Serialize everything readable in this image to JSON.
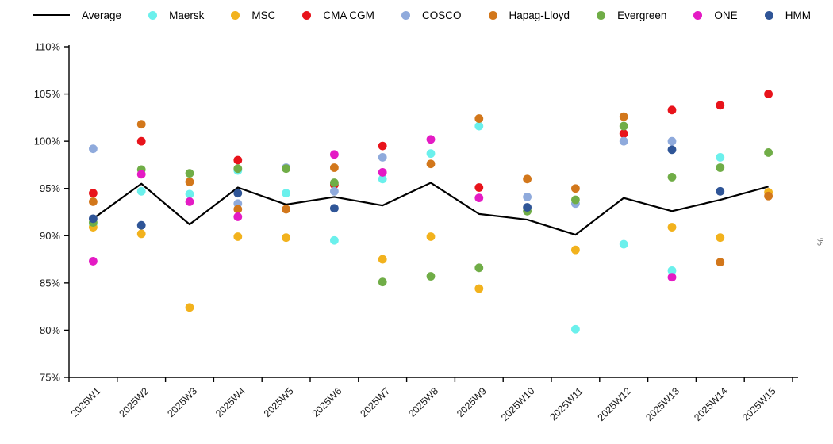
{
  "legend": {
    "note": "series legend across top, left-to-right order matches chart_data.series"
  },
  "y_axis_right_label": "%",
  "chart_data": {
    "type": "scatter",
    "title": "",
    "xlabel": "",
    "ylabel": "%",
    "grid": false,
    "legend_position": "top",
    "ylim": [
      75,
      110
    ],
    "ytick_step": 5,
    "ytick_format": "percent",
    "categories": [
      "2025W1",
      "2025W2",
      "2025W3",
      "2025W4",
      "2025W5",
      "2025W6",
      "2025W7",
      "2025W8",
      "2025W9",
      "2025W10",
      "2025W11",
      "2025W12",
      "2025W13",
      "2025W14",
      "2025W15"
    ],
    "series": [
      {
        "name": "Average",
        "marker": "line",
        "color": "#000000",
        "values": [
          91.8,
          95.5,
          91.2,
          95.1,
          93.3,
          94.1,
          93.2,
          95.6,
          92.3,
          91.7,
          90.1,
          94.0,
          92.6,
          93.8,
          95.2
        ]
      },
      {
        "name": "Maersk",
        "marker": "dot",
        "color": "#6BF0EC",
        "values": [
          91.2,
          94.7,
          94.4,
          96.9,
          94.5,
          89.5,
          96.0,
          98.7,
          101.6,
          null,
          80.1,
          89.1,
          86.3,
          98.3,
          null
        ]
      },
      {
        "name": "MSC",
        "marker": "dot",
        "color": "#F2B21D",
        "values": [
          90.9,
          90.2,
          82.4,
          89.9,
          89.8,
          null,
          87.5,
          89.9,
          84.4,
          null,
          88.5,
          null,
          90.9,
          89.8,
          94.6
        ]
      },
      {
        "name": "CMA CGM",
        "marker": "dot",
        "color": "#E8131B",
        "values": [
          94.5,
          100.0,
          null,
          98.0,
          null,
          95.4,
          99.5,
          null,
          95.1,
          null,
          null,
          100.8,
          103.3,
          103.8,
          105.0
        ]
      },
      {
        "name": "COSCO",
        "marker": "dot",
        "color": "#8FAADC",
        "values": [
          99.2,
          null,
          null,
          93.4,
          97.2,
          94.7,
          98.3,
          null,
          null,
          94.1,
          93.4,
          100.0,
          100.0,
          null,
          null
        ]
      },
      {
        "name": "Hapag-Lloyd",
        "marker": "dot",
        "color": "#D2771B",
        "values": [
          93.6,
          101.8,
          95.7,
          92.8,
          92.8,
          97.2,
          null,
          97.6,
          102.4,
          96.0,
          95.0,
          102.6,
          null,
          87.2,
          94.2
        ]
      },
      {
        "name": "Evergreen",
        "marker": "dot",
        "color": "#70AD47",
        "values": [
          91.4,
          97.0,
          96.6,
          97.1,
          97.1,
          95.6,
          85.1,
          85.7,
          86.6,
          92.6,
          93.8,
          101.6,
          96.2,
          97.2,
          98.8
        ]
      },
      {
        "name": "ONE",
        "marker": "dot",
        "color": "#E41BC4",
        "values": [
          87.3,
          96.5,
          93.6,
          92.0,
          null,
          98.6,
          96.7,
          100.2,
          94.0,
          null,
          null,
          null,
          85.6,
          null,
          null
        ]
      },
      {
        "name": "HMM",
        "marker": "dot",
        "color": "#2F5597",
        "values": [
          91.8,
          91.1,
          null,
          94.5,
          null,
          92.9,
          null,
          null,
          null,
          93.0,
          null,
          null,
          99.1,
          94.7,
          null
        ]
      }
    ]
  }
}
